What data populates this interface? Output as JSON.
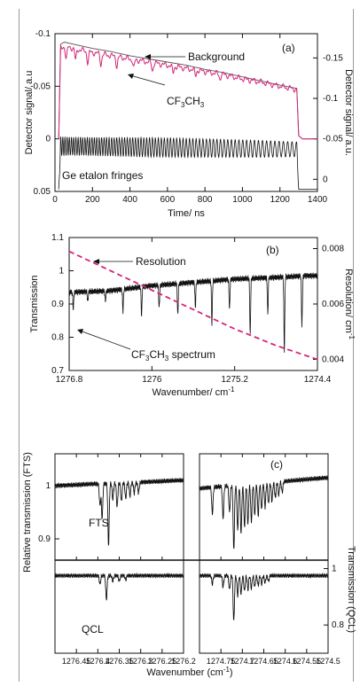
{
  "figure": {
    "panels": [
      {
        "label": "(a)",
        "xlabel": "Time/ ns",
        "ylabel_left": "Detector signal/ a.u",
        "ylabel_right": "Detector signal/ a.u.",
        "annotations": {
          "background": "Background",
          "species": "CF",
          "species_sub1": "3",
          "species_mid": "CH",
          "species_sub2": "3",
          "etalon": "Ge etalon fringes"
        }
      },
      {
        "label": "(b)",
        "xlabel": "Wavenumber/ cm",
        "xlabel_sup": "-1",
        "ylabel_left": "Transmission",
        "ylabel_right": "Resolution/ cm",
        "ylabel_right_sup": "-1",
        "annotations": {
          "resolution": "Resolution",
          "species": "CF",
          "species_sub1": "3",
          "species_mid": "CH",
          "species_sub2": "3",
          "species_tail": " spectrum"
        }
      },
      {
        "label": "(c)",
        "xlabel": "Wavenumber (cm",
        "xlabel_sup": "-1",
        "xlabel_tail": ")",
        "ylabel_left": "Relative transmission (FTS)",
        "ylabel_right": "Transmission (QCL)",
        "annotations": {
          "fts": "FTS",
          "qcl": "QCL"
        }
      }
    ]
  },
  "chart_data": [
    {
      "type": "line",
      "panel": "(a)",
      "xlim": [
        0,
        1400
      ],
      "x_ticks": [
        0,
        200,
        400,
        600,
        800,
        1000,
        1200,
        1400
      ],
      "y_left_lim": [
        0.05,
        -0.1
      ],
      "y_left_ticks": [
        0.05,
        0,
        -0.05,
        -0.1
      ],
      "y_left_tick_labels": [
        "0.05",
        "0",
        "-0.05",
        "-0.1"
      ],
      "y_right_lim": [
        0.015,
        -0.18
      ],
      "y_right_ticks": [
        0,
        -0.05,
        -0.1,
        -0.15
      ],
      "y_right_tick_labels": [
        "0",
        "-0.05",
        "-0.1",
        "-0.15"
      ],
      "series": [
        {
          "role": "background",
          "color": "#555555",
          "x": [
            20,
            30,
            50,
            100,
            200,
            300,
            400,
            500,
            600,
            700,
            800,
            900,
            1000,
            1100,
            1200,
            1290,
            1300,
            1320,
            1400
          ],
          "y": [
            0,
            -0.09,
            -0.092,
            -0.09,
            -0.086,
            -0.083,
            -0.079,
            -0.076,
            -0.073,
            -0.07,
            -0.066,
            -0.063,
            -0.059,
            -0.055,
            -0.051,
            -0.048,
            -0.003,
            0,
            0
          ]
        },
        {
          "role": "cf3ch3",
          "color": "#d4257a",
          "x": [
            20,
            30,
            50,
            100,
            200,
            300,
            400,
            500,
            600,
            700,
            800,
            900,
            1000,
            1100,
            1200,
            1290,
            1300,
            1320,
            1400
          ],
          "y": [
            0,
            -0.085,
            -0.088,
            -0.086,
            -0.082,
            -0.079,
            -0.076,
            -0.073,
            -0.07,
            -0.067,
            -0.064,
            -0.061,
            -0.057,
            -0.054,
            -0.05,
            -0.047,
            -0.003,
            0,
            0
          ],
          "dips_x": [
            60,
            110,
            175,
            245,
            330,
            420,
            520,
            630,
            750,
            880
          ]
        },
        {
          "role": "etalon",
          "color": "#111111",
          "x": [
            20,
            30,
            50,
            100,
            300,
            500,
            700,
            900,
            1100,
            1290,
            1300,
            1400
          ],
          "y_center": [
            0.048,
            0.007,
            0.007,
            0.007,
            0.0075,
            0.008,
            0.0085,
            0.009,
            0.0095,
            0.01,
            0.048,
            0.048
          ],
          "amplitude": [
            0,
            0.009,
            0.009,
            0.0085,
            0.0088,
            0.0092,
            0.009,
            0.0085,
            0.008,
            0.007,
            0,
            0
          ]
        }
      ]
    },
    {
      "type": "line",
      "panel": "(b)",
      "xlim": [
        1276.8,
        1274.4
      ],
      "x_ticks": [
        1276.8,
        1276,
        1275.2,
        1274.4
      ],
      "x_tick_labels": [
        "1276.8",
        "1276",
        "1275.2",
        "1274.4"
      ],
      "ylim": [
        0.7,
        1.1
      ],
      "y_ticks": [
        0.7,
        0.8,
        0.9,
        1,
        1.1
      ],
      "y_tick_labels": [
        "0.7",
        "0.8",
        "0.9",
        "1",
        "1.1"
      ],
      "y_right_lim": [
        0.0036,
        0.0084
      ],
      "y_right_ticks": [
        0.004,
        0.006,
        0.008
      ],
      "y_right_tick_labels": [
        "0.004",
        "0.006",
        "0.008"
      ],
      "series": [
        {
          "role": "spectrum",
          "color": "#111111",
          "baseline_x": [
            1276.8,
            1276.4,
            1276.0,
            1275.6,
            1275.2,
            1274.8,
            1274.5
          ],
          "baseline_y": [
            0.935,
            0.94,
            0.955,
            0.965,
            0.975,
            0.98,
            0.985
          ],
          "lines": [
            {
              "x": 1276.76,
              "depth": 0.05
            },
            {
              "x": 1276.62,
              "depth": 0.03
            },
            {
              "x": 1276.45,
              "depth": 0.03
            },
            {
              "x": 1276.28,
              "depth": 0.065
            },
            {
              "x": 1276.1,
              "depth": 0.085
            },
            {
              "x": 1275.93,
              "depth": 0.07
            },
            {
              "x": 1275.75,
              "depth": 0.095
            },
            {
              "x": 1275.58,
              "depth": 0.075
            },
            {
              "x": 1275.42,
              "depth": 0.13
            },
            {
              "x": 1275.25,
              "depth": 0.09
            },
            {
              "x": 1275.05,
              "depth": 0.17
            },
            {
              "x": 1274.88,
              "depth": 0.11
            },
            {
              "x": 1274.72,
              "depth": 0.22
            },
            {
              "x": 1274.55,
              "depth": 0.15
            }
          ]
        },
        {
          "role": "resolution",
          "color": "#d4257a",
          "dashed": true,
          "axis": "right",
          "x": [
            1276.8,
            1276.4,
            1276.0,
            1275.6,
            1275.2,
            1274.8,
            1274.4
          ],
          "y": [
            0.0079,
            0.0072,
            0.0065,
            0.0058,
            0.0051,
            0.0045,
            0.004
          ]
        }
      ]
    },
    {
      "type": "line",
      "panel": "(c)",
      "subplots": [
        {
          "xlim": [
            1276.5,
            1276.2
          ],
          "x_ticks": [
            1276.5,
            1276.45,
            1276.4,
            1276.35,
            1276.3,
            1276.25,
            1276.2
          ],
          "x_tick_labels": [
            "",
            "1276.45",
            "1276.4",
            "1276.35",
            "1276.3",
            "1276.25",
            "1276.2"
          ],
          "fts_lines": [
            {
              "x": 1276.395,
              "depth": 0.04
            },
            {
              "x": 1276.39,
              "depth": 0.065
            },
            {
              "x": 1276.375,
              "depth": 0.115
            },
            {
              "x": 1276.365,
              "depth": 0.03
            },
            {
              "x": 1276.355,
              "depth": 0.045
            },
            {
              "x": 1276.345,
              "depth": 0.035
            },
            {
              "x": 1276.335,
              "depth": 0.03
            },
            {
              "x": 1276.325,
              "depth": 0.025
            },
            {
              "x": 1276.315,
              "depth": 0.02
            },
            {
              "x": 1276.305,
              "depth": 0.02
            }
          ],
          "qcl_lines": [
            {
              "x": 1276.395,
              "depth": 0.03
            },
            {
              "x": 1276.38,
              "depth": 0.085
            },
            {
              "x": 1276.365,
              "depth": 0.02
            },
            {
              "x": 1276.35,
              "depth": 0.02
            },
            {
              "x": 1276.335,
              "depth": 0.015
            }
          ]
        },
        {
          "xlim": [
            1274.8,
            1274.5
          ],
          "x_ticks": [
            1274.8,
            1274.75,
            1274.7,
            1274.65,
            1274.6,
            1274.55,
            1274.5
          ],
          "x_tick_labels": [
            "",
            "1274.75",
            "1274.7",
            "1274.65",
            "1274.6",
            "1274.55",
            "1274.5"
          ],
          "fts_lines": [
            {
              "x": 1274.77,
              "depth": 0.05
            },
            {
              "x": 1274.745,
              "depth": 0.06
            },
            {
              "x": 1274.73,
              "depth": 0.05
            },
            {
              "x": 1274.72,
              "depth": 0.12
            },
            {
              "x": 1274.711,
              "depth": 0.085
            },
            {
              "x": 1274.703,
              "depth": 0.09
            },
            {
              "x": 1274.695,
              "depth": 0.08
            },
            {
              "x": 1274.687,
              "depth": 0.075
            },
            {
              "x": 1274.679,
              "depth": 0.07
            },
            {
              "x": 1274.671,
              "depth": 0.06
            },
            {
              "x": 1274.663,
              "depth": 0.06
            },
            {
              "x": 1274.655,
              "depth": 0.05
            },
            {
              "x": 1274.647,
              "depth": 0.045
            },
            {
              "x": 1274.639,
              "depth": 0.04
            },
            {
              "x": 1274.631,
              "depth": 0.035
            },
            {
              "x": 1274.623,
              "depth": 0.03
            },
            {
              "x": 1274.615,
              "depth": 0.025
            },
            {
              "x": 1274.607,
              "depth": 0.02
            }
          ],
          "qcl_lines": [
            {
              "x": 1274.77,
              "depth": 0.03
            },
            {
              "x": 1274.745,
              "depth": 0.04
            },
            {
              "x": 1274.73,
              "depth": 0.05
            },
            {
              "x": 1274.72,
              "depth": 0.16
            },
            {
              "x": 1274.711,
              "depth": 0.07
            },
            {
              "x": 1274.703,
              "depth": 0.065
            },
            {
              "x": 1274.695,
              "depth": 0.055
            },
            {
              "x": 1274.687,
              "depth": 0.05
            },
            {
              "x": 1274.679,
              "depth": 0.045
            },
            {
              "x": 1274.671,
              "depth": 0.04
            },
            {
              "x": 1274.663,
              "depth": 0.035
            },
            {
              "x": 1274.655,
              "depth": 0.03
            },
            {
              "x": 1274.647,
              "depth": 0.025
            },
            {
              "x": 1274.639,
              "depth": 0.02
            }
          ]
        }
      ],
      "fts_ylim": [
        0.86,
        1.06
      ],
      "fts_y_ticks": [
        0.9,
        1
      ],
      "fts_y_tick_labels": [
        "0.9",
        "1"
      ],
      "qcl_ylim": [
        0.7,
        1.03
      ],
      "qcl_y_ticks": [
        0.8,
        1
      ],
      "qcl_y_tick_labels": [
        "0.8",
        "1"
      ]
    }
  ]
}
